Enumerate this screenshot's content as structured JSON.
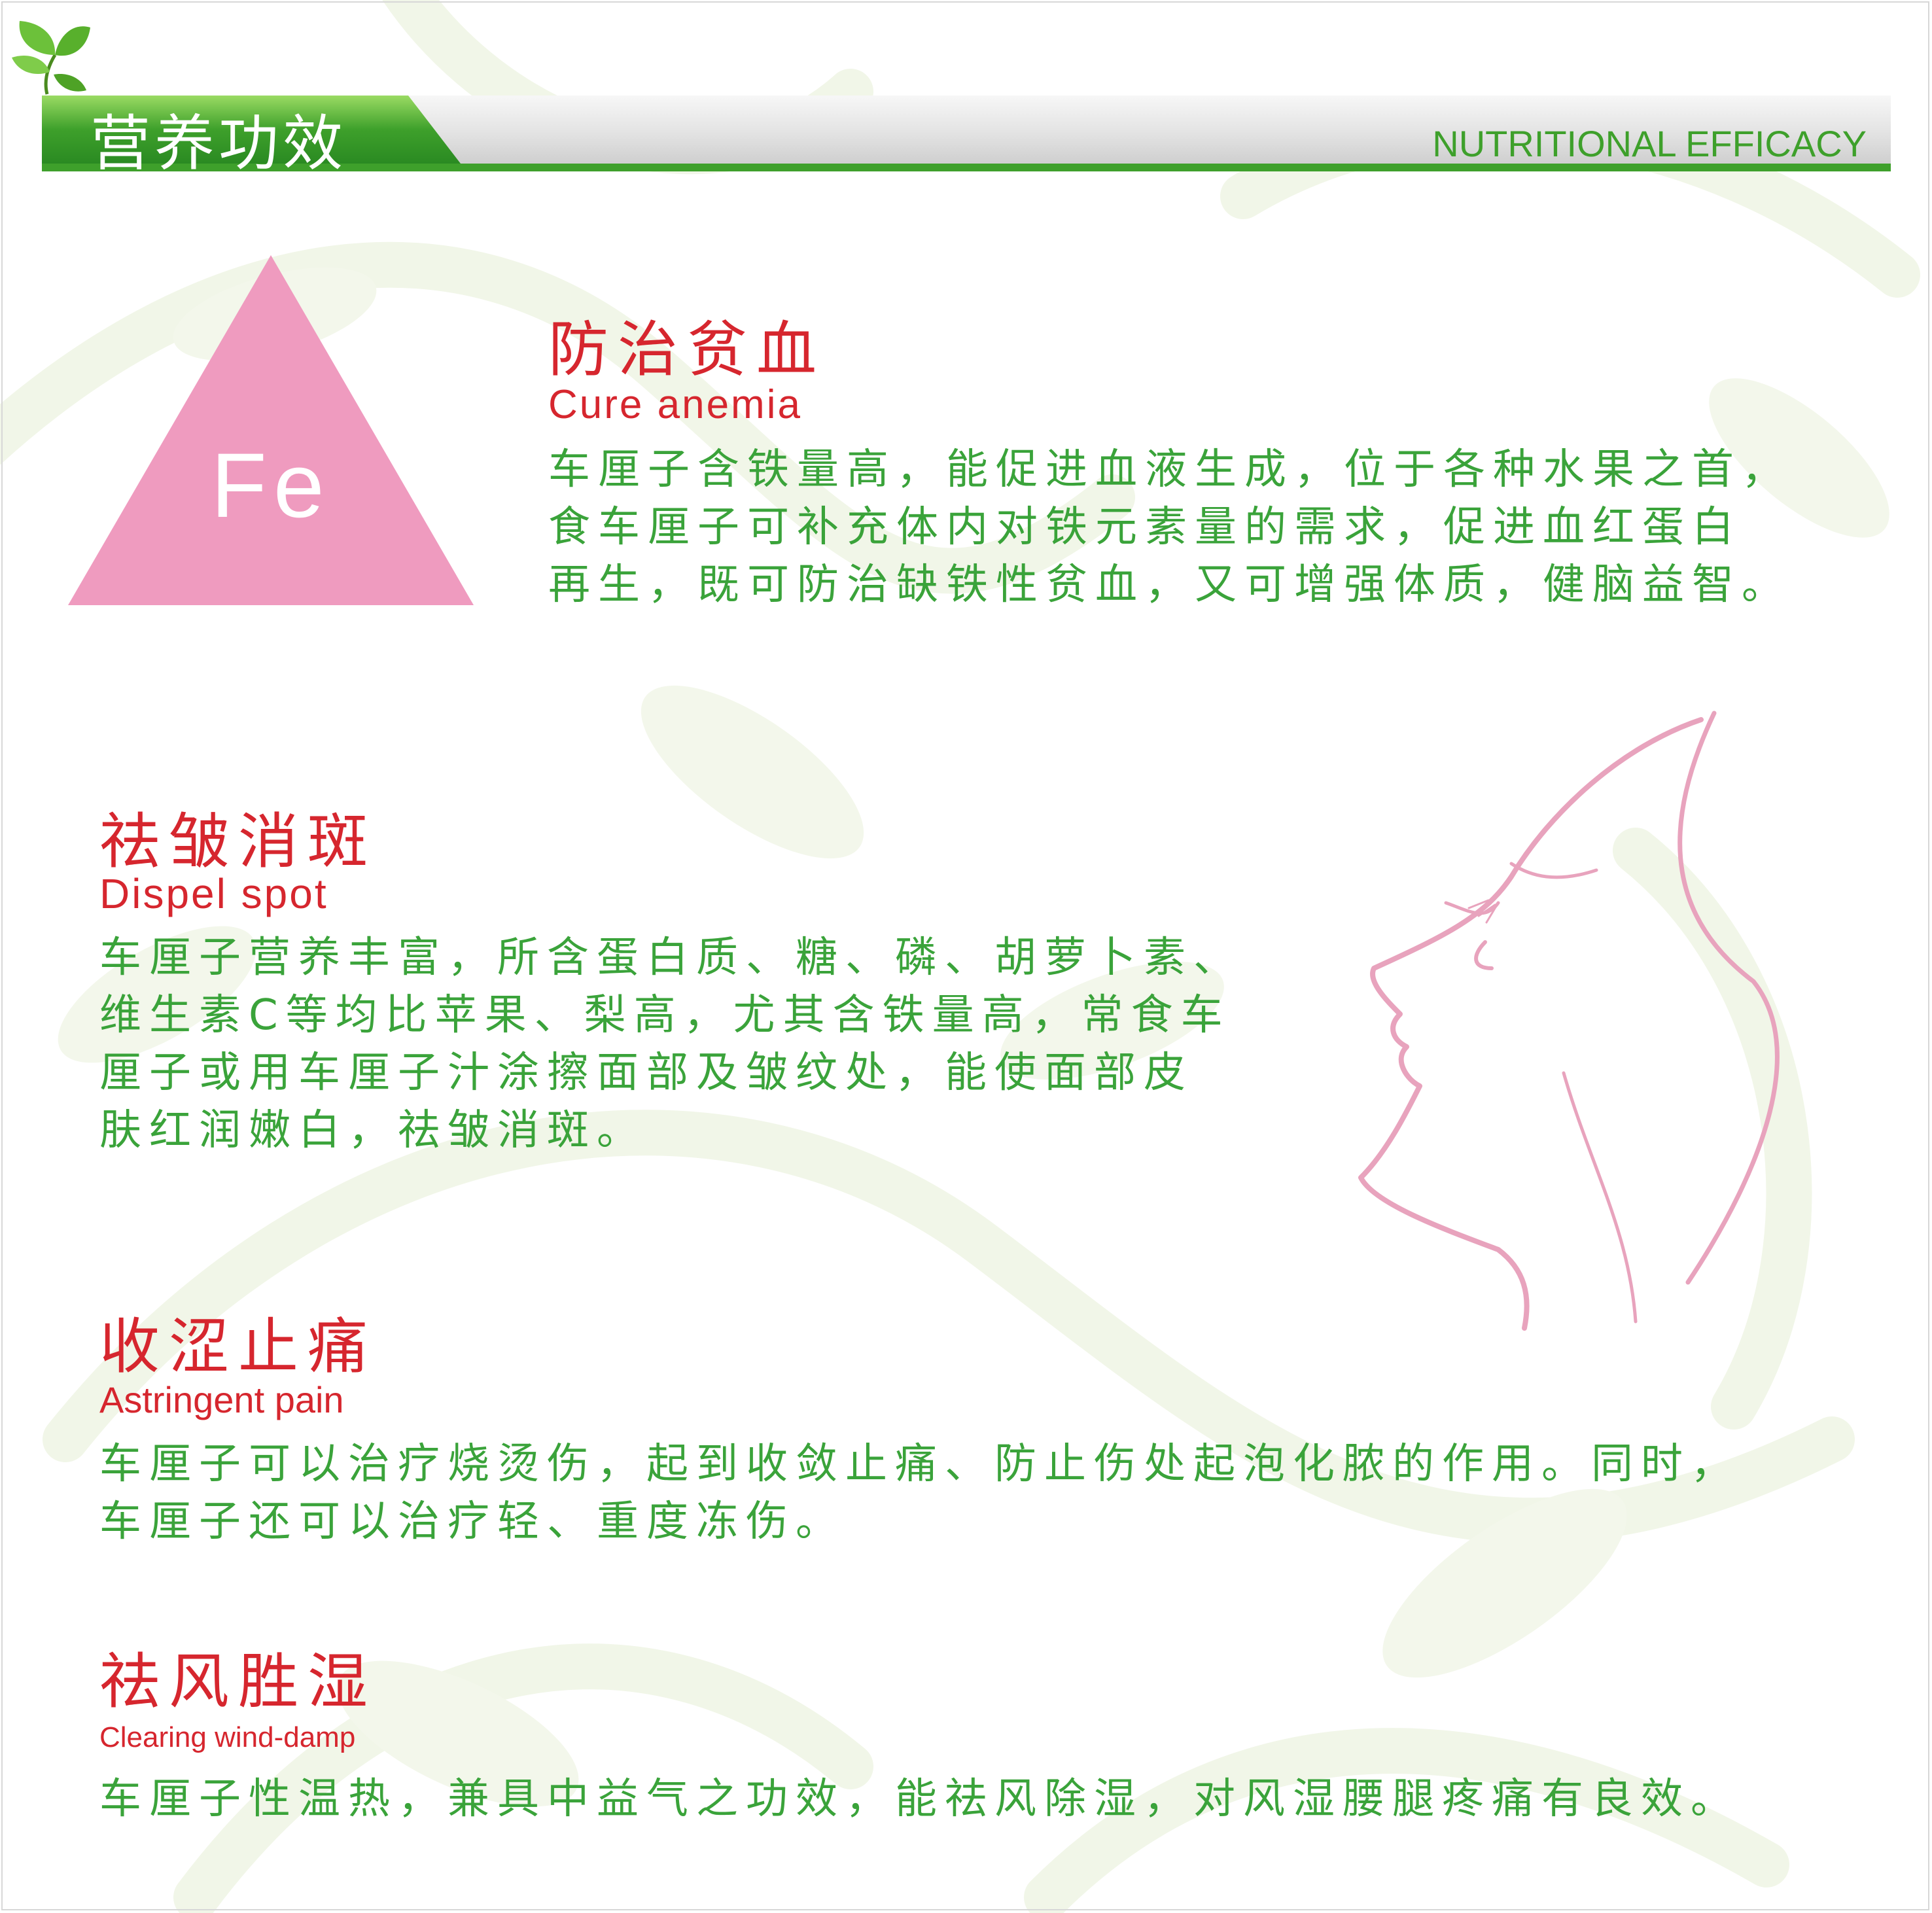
{
  "header": {
    "title": "营养功效",
    "subtitle": "NUTRITIONAL EFFICACY"
  },
  "badge": {
    "symbol": "Fe"
  },
  "sections": [
    {
      "title": "防治贫血",
      "subtitle": "Cure anemia",
      "body": "车厘子含铁量高，能促进血液生成，位于各种水果之首，\n食车厘子可补充体内对铁元素量的需求，促进血红蛋白\n再生，既可防治缺铁性贫血，又可增强体质，健脑益智。"
    },
    {
      "title": "祛皱消斑",
      "subtitle": "Dispel spot",
      "body": "车厘子营养丰富，所含蛋白质、糖、磷、胡萝卜素、\n维生素C等均比苹果、梨高，尤其含铁量高，常食车\n厘子或用车厘子汁涂擦面部及皱纹处，能使面部皮\n肤红润嫩白，祛皱消斑。"
    },
    {
      "title": "收涩止痛",
      "subtitle": "Astringent pain",
      "body": "车厘子可以治疗烧烫伤，起到收敛止痛、防止伤处起泡化脓的作用。同时，\n车厘子还可以治疗轻、重度冻伤。"
    },
    {
      "title": "祛风胜湿",
      "subtitle": "Clearing wind-damp",
      "body": "车厘子性温热，兼具中益气之功效，能祛风除湿，对风湿腰腿疼痛有良效。"
    }
  ],
  "colors": {
    "accent_green": "#3ea02b",
    "title_red": "#d6262e",
    "body_green": "#3aa33a",
    "triangle_pink": "#ef9bbf",
    "face_pink": "#e8a3bd"
  }
}
